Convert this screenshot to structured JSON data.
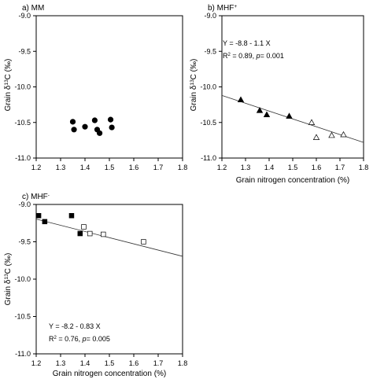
{
  "chart_data": [
    {
      "type": "scatter",
      "panel_label": "a) MM",
      "xlabel": "",
      "ylabel": "Grain δ¹³C (‰)",
      "xlim": [
        1.2,
        1.8
      ],
      "ylim": [
        -11.0,
        -9.0
      ],
      "xticks": [
        "1.2",
        "1.3",
        "1.4",
        "1.5",
        "1.6",
        "1.7",
        "1.8"
      ],
      "yticks": [
        "-9.0",
        "-9.5",
        "-10.0",
        "-10.5",
        "-11.0"
      ],
      "series": [
        {
          "marker": "filled-circle",
          "color": "#000000",
          "x": [
            1.35,
            1.355,
            1.4,
            1.44,
            1.45,
            1.46,
            1.505,
            1.51
          ],
          "y": [
            -10.49,
            -10.6,
            -10.56,
            -10.47,
            -10.6,
            -10.65,
            -10.46,
            -10.57
          ]
        }
      ],
      "annotations": [],
      "fit": null
    },
    {
      "type": "scatter",
      "panel_label": "b) MHF⁺",
      "xlabel": "Grain nitrogen concentration (%)",
      "ylabel": "Grain δ¹³C (‰)",
      "xlim": [
        1.2,
        1.8
      ],
      "ylim": [
        -11.0,
        -9.0
      ],
      "xticks": [
        "1.2",
        "1.3",
        "1.4",
        "1.5",
        "1.6",
        "1.7",
        "1.8"
      ],
      "yticks": [
        "-9.0",
        "-9.5",
        "-10.0",
        "-10.5",
        "-11.0"
      ],
      "series": [
        {
          "marker": "filled-triangle",
          "color": "#000000",
          "x": [
            1.28,
            1.36,
            1.39,
            1.485
          ],
          "y": [
            -10.18,
            -10.33,
            -10.39,
            -10.41
          ]
        },
        {
          "marker": "open-triangle",
          "color": "#000000",
          "x": [
            1.58,
            1.6,
            1.665,
            1.715
          ],
          "y": [
            -10.5,
            -10.71,
            -10.68,
            -10.67
          ]
        }
      ],
      "annotations": [
        "Y = -8.8 - 1.1 X",
        "R² = 0.89, p= 0.001"
      ],
      "fit": {
        "intercept": -8.8,
        "slope": -1.1
      }
    },
    {
      "type": "scatter",
      "panel_label": "c) MHF⁻",
      "xlabel": "Grain nitrogen concentration (%)",
      "ylabel": "Grain δ¹³C (‰)",
      "xlim": [
        1.2,
        1.8
      ],
      "ylim": [
        -11.0,
        -9.0
      ],
      "xticks": [
        "1.2",
        "1.3",
        "1.4",
        "1.5",
        "1.6",
        "1.7",
        "1.8"
      ],
      "yticks": [
        "-9.0",
        "-9.5",
        "-10.0",
        "-10.5",
        "-11.0"
      ],
      "series": [
        {
          "marker": "filled-square",
          "color": "#000000",
          "x": [
            1.21,
            1.235,
            1.345,
            1.38
          ],
          "y": [
            -9.15,
            -9.23,
            -9.15,
            -9.39
          ]
        },
        {
          "marker": "open-square",
          "color": "#000000",
          "x": [
            1.395,
            1.42,
            1.475,
            1.64
          ],
          "y": [
            -9.3,
            -9.39,
            -9.4,
            -9.5
          ]
        }
      ],
      "annotations": [
        "Y = -8.2 - 0.83 X",
        "R² = 0.76, p= 0.005"
      ],
      "fit": {
        "intercept": -8.2,
        "slope": -0.83
      }
    }
  ]
}
